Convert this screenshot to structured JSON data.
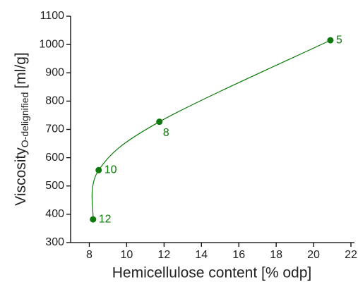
{
  "chart_data": {
    "type": "line",
    "x_label": "Hemicellulose content [% odp]",
    "y_label": {
      "main": "Viscosity",
      "subscript": "O-delignified",
      "unit": "[ml/g]"
    },
    "x": [
      8.2,
      8.5,
      11.75,
      20.9
    ],
    "series": [
      {
        "color": "#0b7a0b",
        "values": [
          382,
          556,
          727,
          1015
        ],
        "point_labels": [
          "12",
          "10",
          "8",
          "5"
        ]
      }
    ],
    "xlim": [
      7,
      22
    ],
    "xticks": [
      8,
      10,
      12,
      14,
      16,
      18,
      20,
      22
    ],
    "ylim": [
      300,
      1100
    ],
    "yticks": [
      300,
      400,
      500,
      600,
      700,
      800,
      900,
      1000,
      1100
    ]
  }
}
